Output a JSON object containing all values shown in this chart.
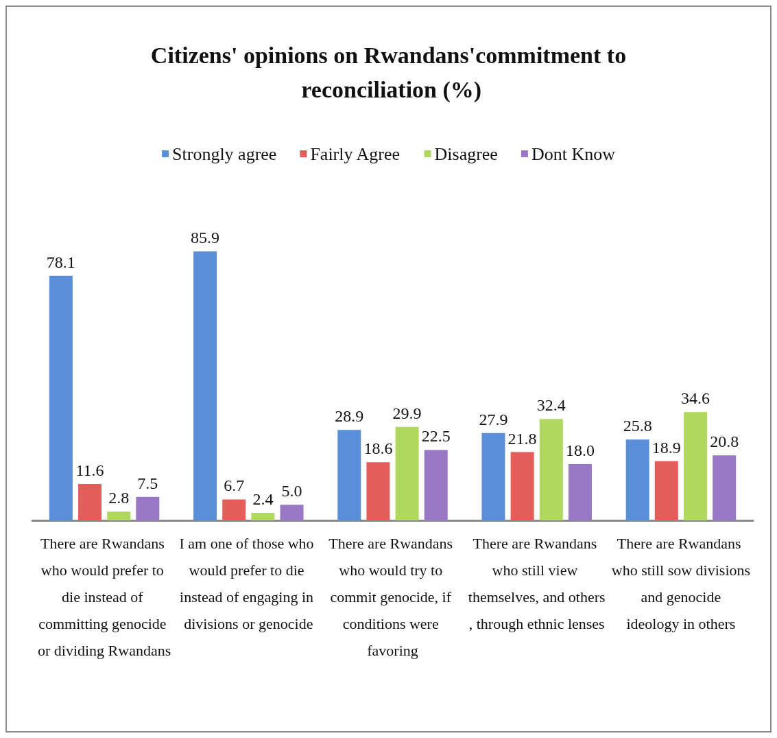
{
  "chart_data": {
    "type": "bar",
    "title": "Citizens' opinions on Rwandans'commitment to reconciliation (%)",
    "categories": [
      "There are Rwandans who would prefer to die instead of committing genocide or dividing Rwandans",
      "I am one of those who would prefer to die instead of engaging in divisions or genocide",
      "There are Rwandans who would try to commit genocide, if conditions were favoring",
      "There are Rwandans who still view themselves, and others, through ethnic lenses",
      "There are Rwandans who still sow divisions and genocide ideology in others"
    ],
    "series": [
      {
        "name": "Strongly agree",
        "color": "#5a8fd8",
        "values": [
          78.1,
          85.9,
          28.9,
          27.9,
          25.8
        ],
        "value_labels": [
          "78.1",
          "85.9",
          "28.9",
          "27.9",
          "25.8"
        ]
      },
      {
        "name": "Fairly Agree",
        "color": "#e35e5a",
        "values": [
          11.6,
          6.7,
          18.6,
          21.8,
          18.9
        ],
        "value_labels": [
          "11.6",
          "6.7",
          "18.6",
          "21.8",
          "18.9"
        ]
      },
      {
        "name": "Disagree",
        "color": "#b0d860",
        "values": [
          2.8,
          2.4,
          29.9,
          32.4,
          34.6
        ],
        "value_labels": [
          "2.8",
          "2.4",
          "29.9",
          "32.4",
          "34.6"
        ]
      },
      {
        "name": "Dont Know",
        "color": "#9878c4",
        "values": [
          7.5,
          5.0,
          22.5,
          18.0,
          20.8
        ],
        "value_labels": [
          "7.5",
          "5.0",
          "22.5",
          "18.0",
          "20.8"
        ]
      }
    ],
    "legend": "top"
  }
}
